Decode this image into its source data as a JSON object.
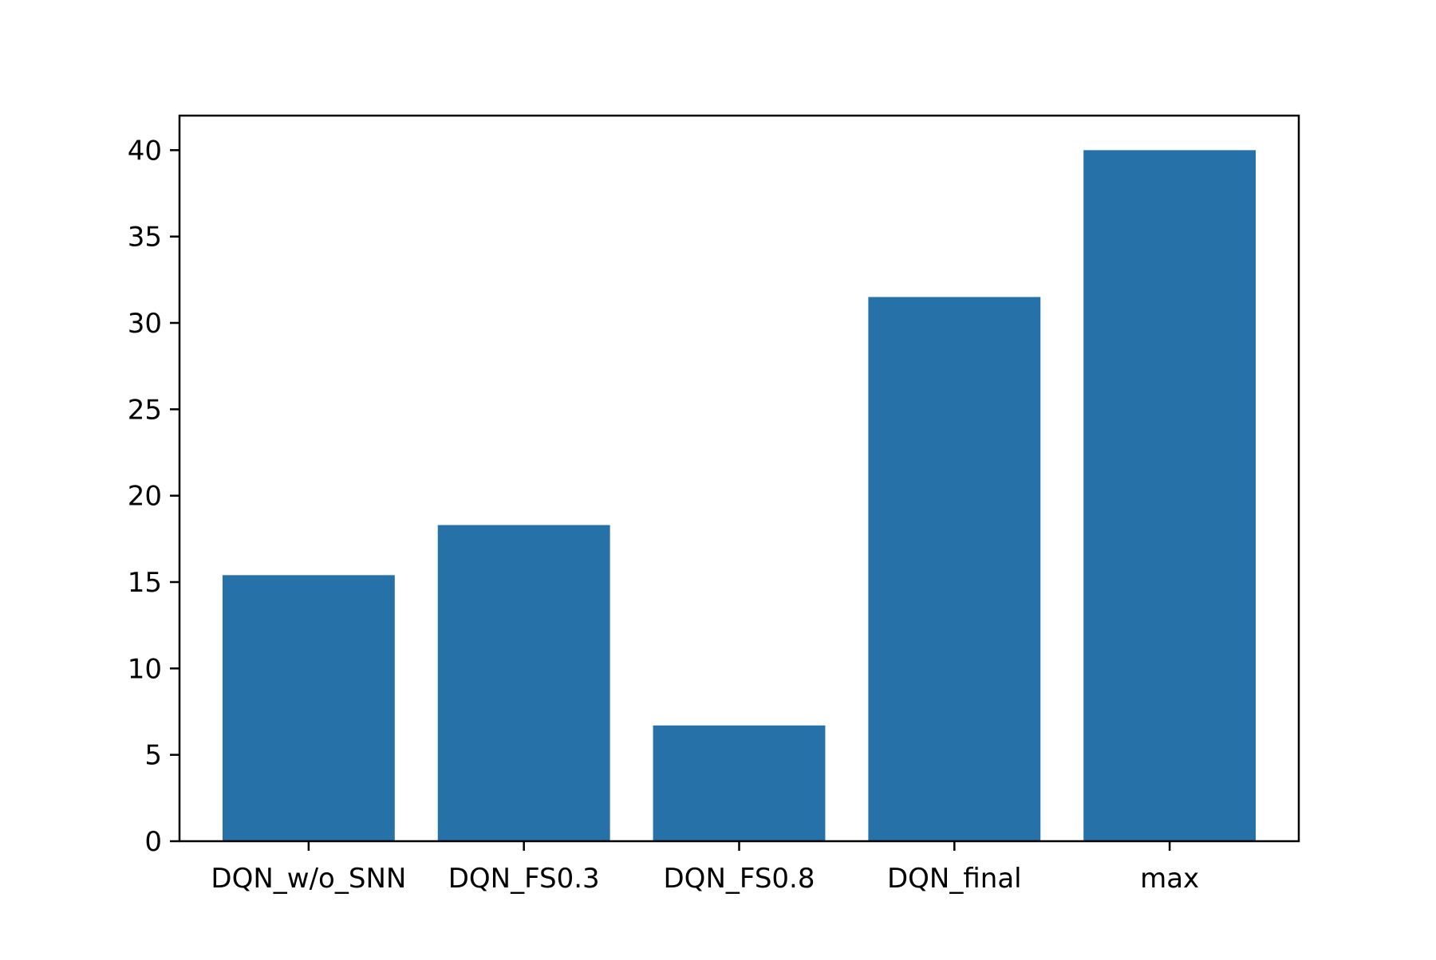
{
  "chart_data": {
    "type": "bar",
    "title": "",
    "xlabel": "",
    "ylabel": "",
    "categories": [
      "DQN_w/o_SNN",
      "DQN_FS0.3",
      "DQN_FS0.8",
      "DQN_final",
      "max"
    ],
    "values": [
      15.4,
      18.3,
      6.7,
      31.5,
      40.0
    ],
    "ylim": [
      0,
      42
    ],
    "yticks": [
      0,
      5,
      10,
      15,
      20,
      25,
      30,
      35,
      40
    ],
    "grid": false,
    "bar_color": "#2571a8"
  }
}
